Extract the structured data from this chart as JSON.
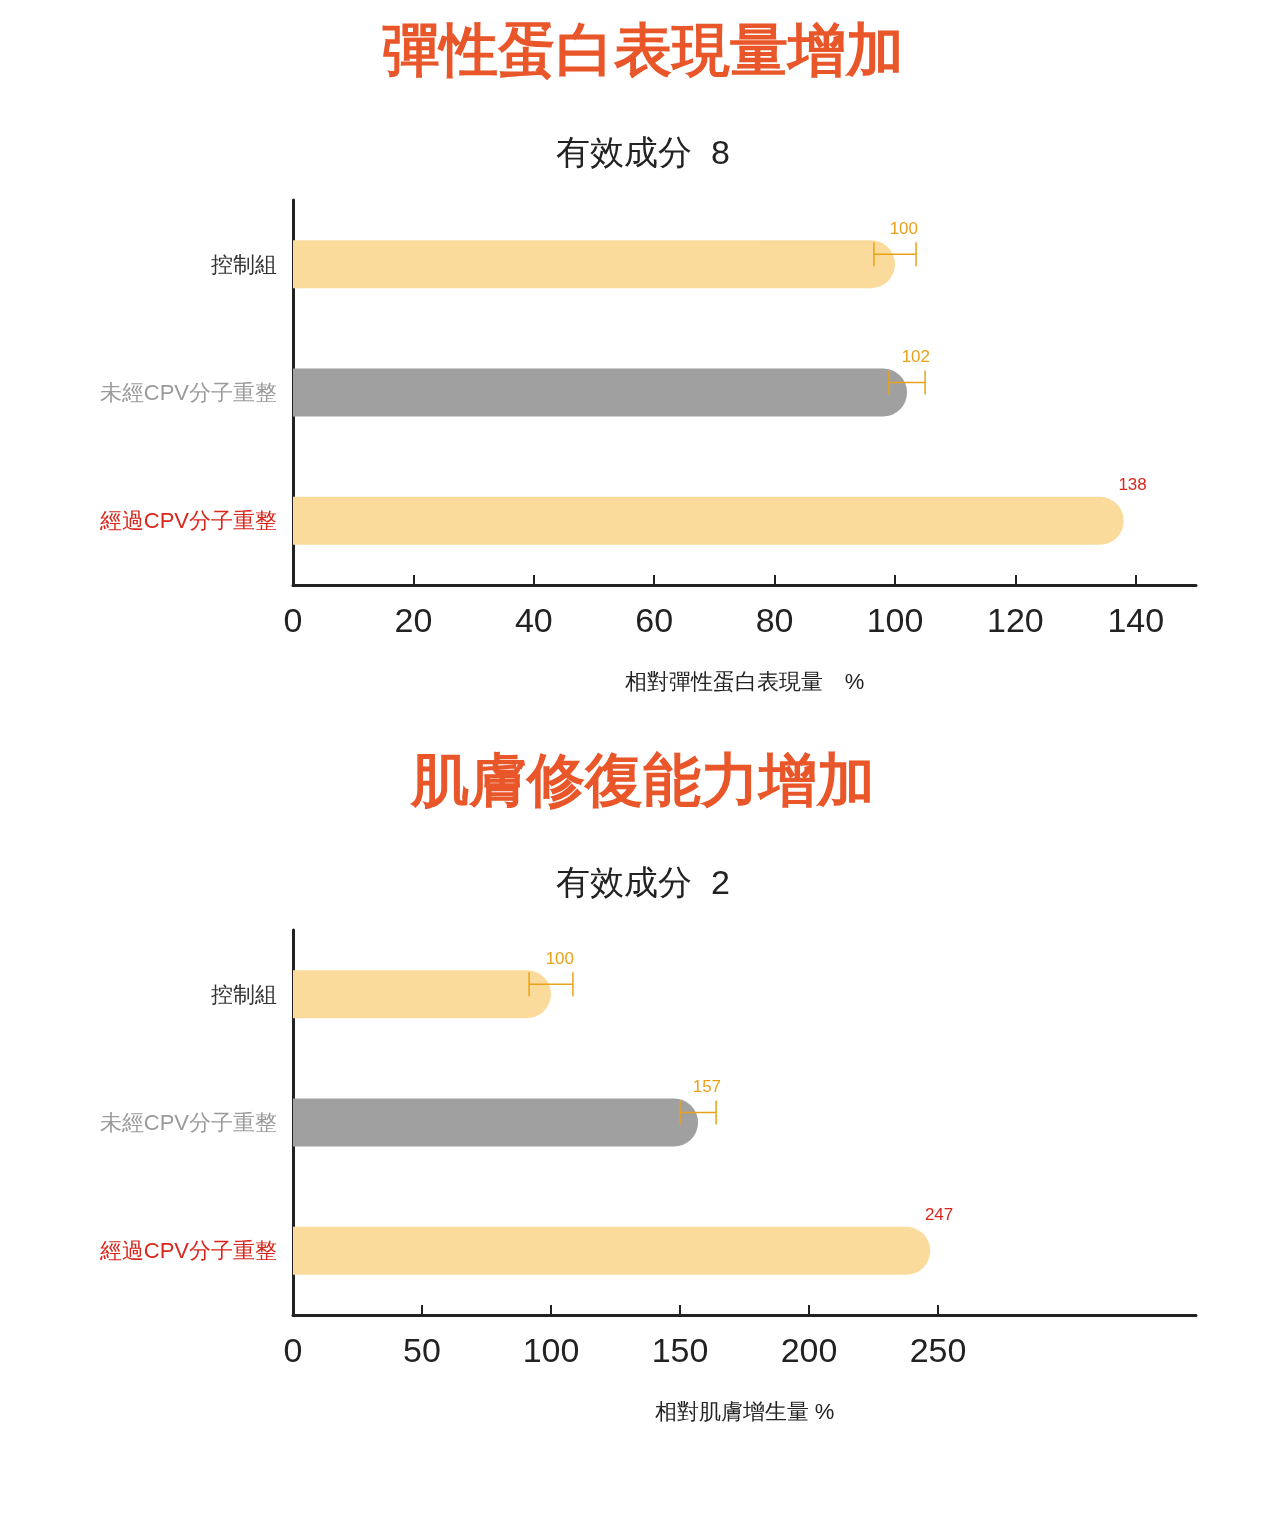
{
  "chart_data": [
    {
      "type": "bar",
      "orientation": "horizontal",
      "title": "彈性蛋白表現量增加",
      "subtitle": "有效成分  8",
      "xlabel": "相對彈性蛋白表現量　%",
      "categories": [
        "控制組",
        "未經CPV分子重整",
        "經過CPV分子重整"
      ],
      "values": [
        100,
        102,
        138
      ],
      "colors": [
        "#fadb9c",
        "#a0a0a0",
        "#fadb9c"
      ],
      "errors": [
        3.5,
        3,
        null
      ],
      "data_labels": true,
      "xlim": [
        0,
        150
      ],
      "xticks": [
        0,
        20,
        40,
        60,
        80,
        100,
        120,
        140
      ],
      "grid": false
    },
    {
      "type": "bar",
      "orientation": "horizontal",
      "title": "肌膚修復能力增加",
      "subtitle": "有效成分  2",
      "xlabel": "相對肌膚增生量 %",
      "categories": [
        "控制組",
        "未經CPV分子重整",
        "經過CPV分子重整"
      ],
      "values": [
        100,
        157,
        247
      ],
      "colors": [
        "#fadb9c",
        "#a0a0a0",
        "#fadb9c"
      ],
      "errors": [
        8.5,
        7,
        null
      ],
      "data_labels": true,
      "xlim": [
        0,
        350
      ],
      "xticks": [
        0,
        50,
        100,
        150,
        200,
        250
      ],
      "grid": false
    }
  ]
}
